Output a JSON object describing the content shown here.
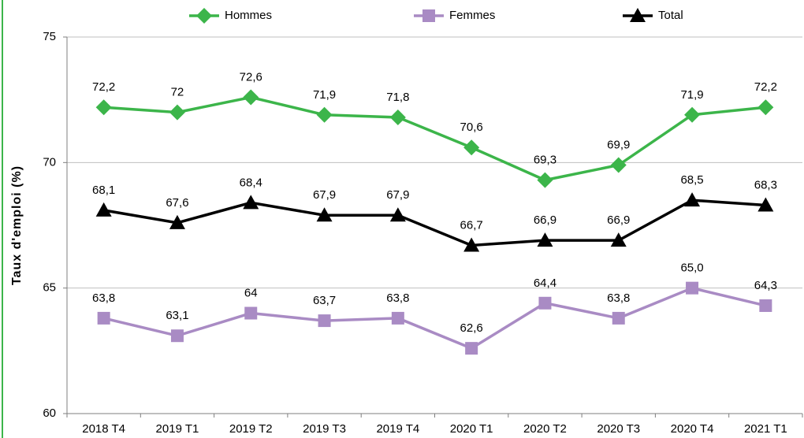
{
  "chart_data": {
    "type": "line",
    "y_label": "Taux d'emploi (%)",
    "categories": [
      "2018 T4",
      "2019 T1",
      "2019 T2",
      "2019 T3",
      "2019 T4",
      "2020 T1",
      "2020 T2",
      "2020 T3",
      "2020 T4",
      "2021 T1"
    ],
    "series": [
      {
        "name": "Hommes",
        "color": "#3cb54a",
        "values": [
          72.2,
          72,
          72.6,
          71.9,
          71.8,
          70.6,
          69.3,
          69.9,
          71.9,
          72.2
        ],
        "value_labels": [
          "72,2",
          "72",
          "72,6",
          "71,9",
          "71,8",
          "70,6",
          "69,3",
          "69,9",
          "71,9",
          "72,2"
        ]
      },
      {
        "name": "Femmes",
        "color": "#a98bc4",
        "values": [
          63.8,
          63.1,
          64,
          63.7,
          63.8,
          62.6,
          64.4,
          63.8,
          65.0,
          64.3
        ],
        "value_labels": [
          "63,8",
          "63,1",
          "64",
          "63,7",
          "63,8",
          "62,6",
          "64,4",
          "63,8",
          "65,0",
          "64,3"
        ]
      },
      {
        "name": "Total",
        "color": "#000000",
        "values": [
          68.1,
          67.6,
          68.4,
          67.9,
          67.9,
          66.7,
          66.9,
          66.9,
          68.5,
          68.3
        ],
        "value_labels": [
          "68,1",
          "67,6",
          "68,4",
          "67,9",
          "67,9",
          "66,7",
          "66,9",
          "66,9",
          "68,5",
          "68,3"
        ]
      }
    ],
    "ylim": [
      60,
      75
    ],
    "yticks": [
      60,
      65,
      70,
      75
    ],
    "grid": true,
    "legend": "top"
  }
}
